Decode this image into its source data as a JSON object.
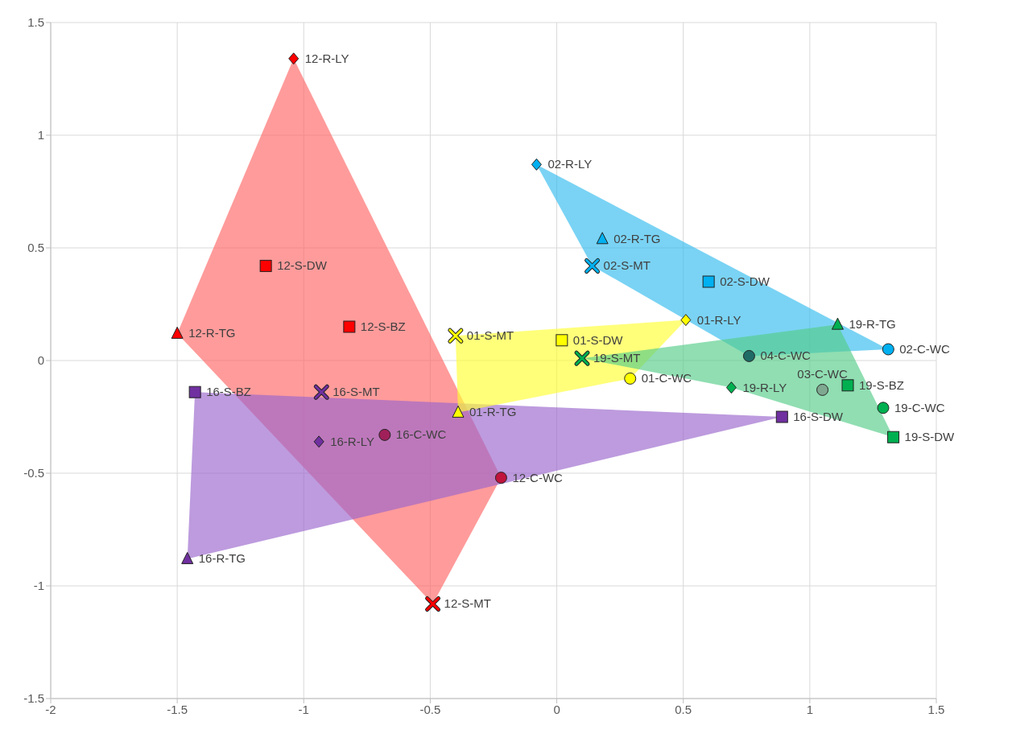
{
  "chart_data": {
    "type": "scatter",
    "xlim": [
      -2,
      1.5
    ],
    "xticks": [
      -2,
      -1.5,
      -1,
      -0.5,
      0,
      0.5,
      1,
      1.5
    ],
    "ylim": [
      -1.5,
      1.5
    ],
    "yticks": [
      -1.5,
      -1,
      -0.5,
      0,
      0.5,
      1,
      1.5
    ],
    "grid": true,
    "series": [
      {
        "type": "area",
        "color": "#ff6666",
        "x": [
          -1.04,
          -0.22,
          -0.49,
          -1.5
        ],
        "values": [
          1.34,
          -0.52,
          -1.08,
          0.12
        ]
      },
      {
        "type": "area",
        "color": "#9966cc",
        "x": [
          -1.43,
          0.89,
          -1.46
        ],
        "values": [
          -0.14,
          -0.25,
          -0.88
        ]
      },
      {
        "type": "area",
        "color": "#ffff33",
        "x": [
          -0.4,
          0.51,
          0.29,
          -0.39
        ],
        "values": [
          0.11,
          0.18,
          -0.08,
          -0.23
        ]
      },
      {
        "type": "area",
        "color": "#33bbee",
        "x": [
          -0.08,
          1.31,
          0.76,
          0.14
        ],
        "values": [
          0.87,
          0.05,
          0.02,
          0.42
        ]
      },
      {
        "type": "area",
        "color": "#55cc88",
        "x": [
          0.1,
          1.11,
          1.33,
          0.69
        ],
        "values": [
          0.01,
          0.16,
          -0.34,
          -0.12
        ]
      },
      {
        "marker": "diamond",
        "x": [
          -1.04,
          -0.94,
          -0.08,
          0.51,
          0.69
        ],
        "values": [
          1.34,
          -0.36,
          0.87,
          0.18,
          -0.12
        ],
        "colors": [
          "#ff0000",
          "#7030a0",
          "#00b0f0",
          "#ffff00",
          "#00b050"
        ]
      },
      {
        "marker": "triangle",
        "x": [
          -1.5,
          -1.46,
          -0.39,
          0.18,
          1.11
        ],
        "values": [
          0.12,
          -0.88,
          -0.23,
          0.54,
          0.16
        ],
        "colors": [
          "#ff0000",
          "#7030a0",
          "#ffff00",
          "#00b0f0",
          "#00b050"
        ]
      },
      {
        "marker": "square",
        "x": [
          -1.15,
          -0.82,
          -1.43,
          0.89,
          0.02,
          0.6,
          1.15,
          1.33
        ],
        "values": [
          0.42,
          0.15,
          -0.14,
          -0.25,
          0.09,
          0.35,
          -0.11,
          -0.34
        ],
        "colors": [
          "#ff0000",
          "#ff0000",
          "#7030a0",
          "#7030a0",
          "#ffff00",
          "#00b0f0",
          "#00b050",
          "#00b050"
        ]
      },
      {
        "marker": "cross",
        "x": [
          -0.49,
          -0.93,
          -0.4,
          0.1,
          0.14
        ],
        "values": [
          -1.08,
          -0.14,
          0.11,
          0.01,
          0.42
        ],
        "colors": [
          "#ff0000",
          "#7030a0",
          "#ffff00",
          "#00b050",
          "#00b0f0"
        ]
      },
      {
        "marker": "circle",
        "x": [
          -0.22,
          -0.68,
          0.29,
          1.31,
          0.76,
          1.05,
          1.29
        ],
        "values": [
          -0.52,
          -0.33,
          -0.08,
          0.05,
          0.02,
          -0.13,
          -0.21
        ],
        "colors": [
          "#c0143c",
          "#a0205a",
          "#ffff00",
          "#00b0f0",
          "#1f6b66",
          "#7fa890",
          "#00b050"
        ]
      }
    ],
    "annotations": [
      {
        "text": "12-R-LY",
        "x": -1.04,
        "y": 1.34
      },
      {
        "text": "12-S-DW",
        "x": -1.15,
        "y": 0.42
      },
      {
        "text": "12-R-TG",
        "x": -1.5,
        "y": 0.12
      },
      {
        "text": "12-S-BZ",
        "x": -0.82,
        "y": 0.15
      },
      {
        "text": "12-C-WC",
        "x": -0.22,
        "y": -0.52
      },
      {
        "text": "12-S-MT",
        "x": -0.49,
        "y": -1.08
      },
      {
        "text": "16-S-BZ",
        "x": -1.43,
        "y": -0.14
      },
      {
        "text": "16-S-MT",
        "x": -0.93,
        "y": -0.14
      },
      {
        "text": "16-R-LY",
        "x": -0.94,
        "y": -0.36
      },
      {
        "text": "16-C-WC",
        "x": -0.68,
        "y": -0.33
      },
      {
        "text": "16-R-TG",
        "x": -1.46,
        "y": -0.88
      },
      {
        "text": "16-S-DW",
        "x": 0.89,
        "y": -0.25
      },
      {
        "text": "01-S-MT",
        "x": -0.4,
        "y": 0.11
      },
      {
        "text": "01-S-DW",
        "x": 0.02,
        "y": 0.09
      },
      {
        "text": "01-R-LY",
        "x": 0.51,
        "y": 0.18
      },
      {
        "text": "01-C-WC",
        "x": 0.29,
        "y": -0.08
      },
      {
        "text": "01-R-TG",
        "x": -0.39,
        "y": -0.23
      },
      {
        "text": "19-S-MT",
        "x": 0.1,
        "y": 0.01
      },
      {
        "text": "02-R-LY",
        "x": -0.08,
        "y": 0.87
      },
      {
        "text": "02-R-TG",
        "x": 0.18,
        "y": 0.54
      },
      {
        "text": "02-S-MT",
        "x": 0.14,
        "y": 0.42
      },
      {
        "text": "02-S-DW",
        "x": 0.6,
        "y": 0.35
      },
      {
        "text": "02-C-WC",
        "x": 1.31,
        "y": 0.05
      },
      {
        "text": "19-R-TG",
        "x": 1.11,
        "y": 0.16
      },
      {
        "text": "04-C-WC",
        "x": 0.76,
        "y": 0.02
      },
      {
        "text": "03-C-WC",
        "x": 1.05,
        "y": -0.13
      },
      {
        "text": "19-R-LY",
        "x": 0.69,
        "y": -0.12
      },
      {
        "text": "19-S-BZ",
        "x": 1.15,
        "y": -0.11
      },
      {
        "text": "19-C-WC",
        "x": 1.29,
        "y": -0.21
      },
      {
        "text": "19-S-DW",
        "x": 1.33,
        "y": -0.34
      }
    ]
  }
}
